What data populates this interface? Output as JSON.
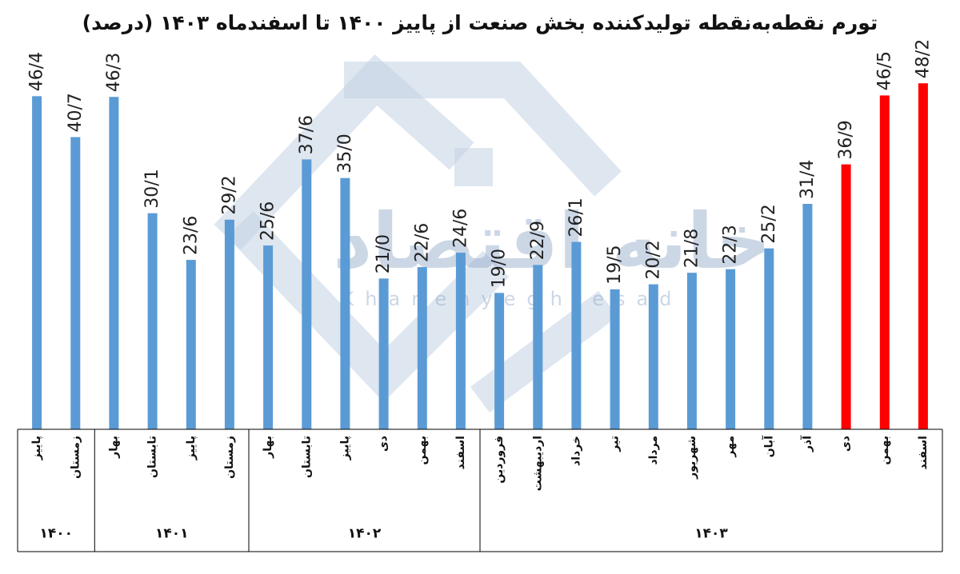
{
  "title": "تورم نقطه‌به‌نقطه تولیدکننده بخش صنعت از پاییز ۱۴۰۰ تا اسفندماه ۱۴۰۳ (درصد)",
  "watermark": {
    "text": "خانه اقتصاد",
    "latin": "Khanehyeghtesad",
    "color": "#8fa8c8"
  },
  "colors": {
    "normal": "#5b9bd5",
    "highlight": "#ff0000"
  },
  "chart_data": {
    "type": "bar",
    "categories": [
      "پاییز",
      "زمستان",
      "بهار",
      "تابستان",
      "پاییز",
      "زمستان",
      "بهار",
      "تابستان",
      "پاییز",
      "دی",
      "بهمن",
      "اسفند",
      "فروردین",
      "اردیبهشت",
      "خرداد",
      "تیر",
      "مرداد",
      "شهریور",
      "مهر",
      "آبان",
      "آذر",
      "دی",
      "بهمن",
      "اسفند"
    ],
    "values": [
      46.4,
      40.7,
      46.3,
      30.1,
      23.6,
      29.2,
      25.6,
      37.6,
      35.0,
      21.0,
      22.6,
      24.6,
      19.0,
      22.9,
      26.1,
      19.5,
      20.2,
      21.8,
      22.3,
      25.2,
      31.4,
      36.9,
      46.5,
      48.2
    ],
    "labels": [
      "46/4",
      "40/7",
      "46/3",
      "30/1",
      "23/6",
      "29/2",
      "25/6",
      "37/6",
      "35/0",
      "21/0",
      "22/6",
      "24/6",
      "19/0",
      "22/9",
      "26/1",
      "19/5",
      "20/2",
      "21/8",
      "22/3",
      "25/2",
      "31/4",
      "36/9",
      "46/5",
      "48/2"
    ],
    "highlight": [
      false,
      false,
      false,
      false,
      false,
      false,
      false,
      false,
      false,
      false,
      false,
      false,
      false,
      false,
      false,
      false,
      false,
      false,
      false,
      false,
      false,
      true,
      true,
      true
    ],
    "groups": [
      {
        "label": "۱۴۰۰",
        "count": 2
      },
      {
        "label": "۱۴۰۱",
        "count": 4
      },
      {
        "label": "۱۴۰۲",
        "count": 6
      },
      {
        "label": "۱۴۰۳",
        "count": 12
      }
    ],
    "ylim": [
      0,
      50
    ],
    "grid": false,
    "legend": "none"
  }
}
